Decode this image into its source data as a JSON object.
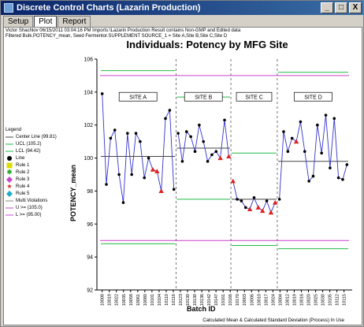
{
  "window": {
    "title": "Discrete Control Charts (Lazarin Production)",
    "buttons": [
      "_",
      "□",
      "X"
    ]
  },
  "tabs": [
    {
      "label": "Setup",
      "active": false
    },
    {
      "label": "Plot",
      "active": true
    },
    {
      "label": "Report",
      "active": false
    }
  ],
  "info": {
    "line1": "Victor Shachlov 06/15/2011 03:04:16 PM Imports:\\Lazarin Production   Result contains Non-GMP and Edited data",
    "line2": "Filtered Bulk.POTENCY_mean, Seed Fermentor.SUPPLEMENT SOURCE_1 = Site A,Site B,Site C,Site D"
  },
  "legend": {
    "title": "Legend",
    "items": [
      {
        "label": "Center Line (99.81)",
        "symbol": "line",
        "color": "#444444"
      },
      {
        "label": "UCL (105.2)",
        "symbol": "line",
        "color": "#22bb44"
      },
      {
        "label": "LCL (94.42)",
        "symbol": "line",
        "color": "#22bb44"
      },
      {
        "label": "Line",
        "symbol": "dot",
        "color": "#000000"
      },
      {
        "label": "Rule 1",
        "symbol": "square",
        "color": "#dddd00"
      },
      {
        "label": "Rule 2",
        "symbol": "asterisk",
        "color": "#22aa22"
      },
      {
        "label": "Rule 3",
        "symbol": "diamond",
        "color": "#cc44cc"
      },
      {
        "label": "Rule 4",
        "symbol": "star",
        "color": "#dd2222"
      },
      {
        "label": "Rule 5",
        "symbol": "diamond",
        "color": "#22aacc"
      },
      {
        "label": "Multi Violations",
        "symbol": "line",
        "color": "#888888"
      },
      {
        "label": "U >= (105.0)",
        "symbol": "line",
        "color": "#cc44cc"
      },
      {
        "label": "L >= (95.00)",
        "symbol": "line",
        "color": "#cc44cc"
      }
    ]
  },
  "footer": "Calculated Mean & Calculated Standard Deviation (Process) In Use",
  "chart_data": {
    "type": "line",
    "title": "Individuals: Potency by MFG Site",
    "xlabel": "Batch ID",
    "ylabel": "POTENCY_mean",
    "ylim": [
      92,
      106
    ],
    "yticks": [
      92,
      94,
      96,
      98,
      100,
      102,
      104,
      106
    ],
    "grid": false,
    "legend_position": "left",
    "colors": {
      "series_line": "#3333cc",
      "point": "#000000",
      "violation": "#dd2222",
      "center": "#444444",
      "control_limit": "#22bb44",
      "spec_limit": "#cc44cc",
      "divider": "#555555"
    },
    "x_tick_labels": [
      "10008",
      "10019",
      "10022",
      "10035",
      "10058",
      "10061",
      "10080",
      "10101",
      "10104",
      "10110",
      "10116",
      "10123",
      "10130",
      "10130",
      "10136",
      "10142",
      "10147",
      "10161",
      "10166",
      "10170",
      "10003",
      "10006",
      "10010",
      "10017",
      "10024",
      "10004",
      "10012",
      "10019",
      "10016",
      "10020",
      "10025",
      "10030",
      "10105",
      "10112",
      "10115"
    ],
    "sites": [
      {
        "name": "SITE A",
        "center": 100.1,
        "ucl": 105.3,
        "lcl": 94.8,
        "values": [
          103.9,
          98.4,
          101.2,
          101.7,
          99.0,
          97.3,
          101.5,
          99.0,
          101.5,
          101.0,
          98.8,
          100.0,
          99.3,
          99.2,
          98.0,
          102.4,
          102.9,
          98.1
        ],
        "violations": [
          0,
          0,
          0,
          0,
          0,
          0,
          0,
          0,
          0,
          0,
          0,
          0,
          1,
          1,
          1,
          0,
          0,
          0
        ]
      },
      {
        "name": "SITE B",
        "center": 100.6,
        "ucl": 103.7,
        "lcl": 97.5,
        "values": [
          101.5,
          99.8,
          101.6,
          101.3,
          100.4,
          102.0,
          101.0,
          99.8,
          100.2,
          100.4,
          100.0,
          102.3,
          100.1
        ],
        "violations": [
          0,
          0,
          0,
          0,
          0,
          0,
          0,
          0,
          0,
          0,
          1,
          0,
          1
        ]
      },
      {
        "name": "SITE C",
        "center": 97.5,
        "ucl": 100.3,
        "lcl": 94.7,
        "values": [
          98.6,
          97.5,
          97.4,
          97.0,
          96.9,
          97.6,
          97.0,
          96.8,
          97.4,
          96.7,
          97.3
        ],
        "violations": [
          1,
          0,
          0,
          0,
          1,
          0,
          1,
          1,
          0,
          1,
          1
        ]
      },
      {
        "name": "SITE D",
        "center": 99.8,
        "ucl": 105.2,
        "lcl": 94.5,
        "values": [
          97.5,
          101.6,
          100.4,
          101.2,
          101.0,
          102.2,
          100.4,
          98.6,
          98.9,
          102.0,
          100.3,
          102.6,
          99.4,
          102.4,
          98.8,
          98.7,
          99.6
        ],
        "violations": [
          0,
          0,
          0,
          0,
          1,
          0,
          0,
          0,
          0,
          0,
          0,
          0,
          0,
          0,
          0,
          0,
          0
        ]
      }
    ],
    "usl": 105.0,
    "lsl": 95.0
  }
}
